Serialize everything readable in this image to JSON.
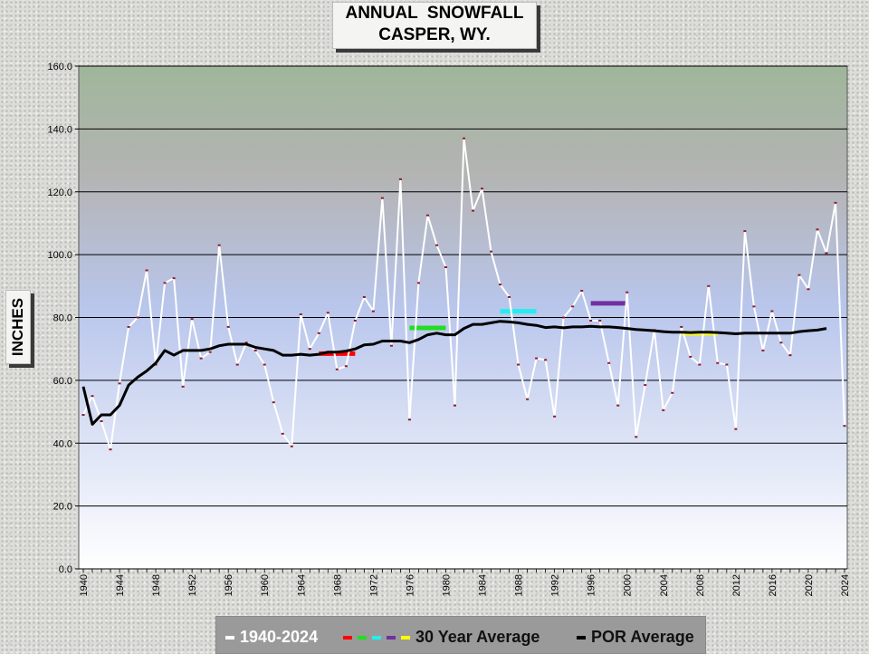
{
  "title_line1": "ANNUAL  SNOWFALL",
  "title_line2": "CASPER, WY.",
  "ylabel": "INCHES",
  "legend": {
    "annual": "1940-2024",
    "thirty": "30 Year Average",
    "por": "POR Average"
  },
  "colors": {
    "annual_line": "#ffffff",
    "annual_marker": "#8b1a2b",
    "por_line": "#000000",
    "thirty_1": "#ff0000",
    "thirty_2": "#22dd22",
    "thirty_3": "#22eeee",
    "thirty_4": "#7030a0",
    "thirty_5": "#ffff00"
  },
  "chart_data": {
    "type": "line",
    "title": "ANNUAL  SNOWFALL CASPER, WY.",
    "ylabel": "INCHES",
    "xlabel": "",
    "ylim": [
      0,
      160
    ],
    "xlim": [
      1940,
      2024
    ],
    "yticks": [
      "0.0",
      "20.0",
      "40.0",
      "60.0",
      "80.0",
      "100.0",
      "120.0",
      "140.0",
      "160.0"
    ],
    "xticks": [
      "1940",
      "1944",
      "1948",
      "1952",
      "1956",
      "1960",
      "1964",
      "1968",
      "1972",
      "1976",
      "1980",
      "1984",
      "1988",
      "1992",
      "1996",
      "2000",
      "2004",
      "2008",
      "2012",
      "2016",
      "2020",
      "2024"
    ],
    "grid": true,
    "legend_position": "bottom",
    "series": [
      {
        "name": "1940-2024",
        "x_start": 1940,
        "values": [
          49.0,
          55.0,
          47.0,
          38.0,
          59.0,
          77.0,
          80.0,
          95.0,
          65.0,
          91.0,
          92.5,
          58.0,
          79.5,
          67.0,
          69.0,
          103.0,
          77.0,
          65.0,
          72.0,
          69.5,
          65.0,
          53.0,
          43.0,
          39.0,
          81.0,
          70.0,
          75.0,
          81.5,
          63.5,
          64.5,
          79.0,
          86.5,
          82.0,
          118.0,
          71.0,
          124.0,
          47.5,
          91.0,
          112.5,
          103.0,
          96.0,
          52.0,
          137.0,
          114.0,
          121.0,
          101.0,
          90.5,
          86.5,
          65.0,
          54.0,
          67.0,
          66.5,
          48.5,
          80.0,
          83.5,
          88.5,
          79.0,
          79.0,
          65.5,
          52.0,
          88.0,
          42.0,
          58.5,
          76.0,
          50.5,
          56.0,
          77.0,
          67.5,
          65.0,
          90.0,
          65.5,
          65.0,
          44.5,
          107.5,
          83.5,
          69.5,
          82.0,
          72.0,
          68.0,
          93.5,
          89.0,
          108.0,
          100.5,
          116.5,
          45.5
        ]
      },
      {
        "name": "POR Average",
        "x_start": 1940,
        "values": [
          58.0,
          46.0,
          49.0,
          49.0,
          52.0,
          58.5,
          61.0,
          63.0,
          65.5,
          69.5,
          68.0,
          69.5,
          69.5,
          69.5,
          70.0,
          71.0,
          71.5,
          71.5,
          71.5,
          70.5,
          70.0,
          69.5,
          68.0,
          68.0,
          68.3,
          68.0,
          68.3,
          69.0,
          69.0,
          69.3,
          70.0,
          71.3,
          71.5,
          72.5,
          72.5,
          72.5,
          72.0,
          73.0,
          74.5,
          75.0,
          74.5,
          74.5,
          76.5,
          77.8,
          77.8,
          78.3,
          78.8,
          78.6,
          78.3,
          77.8,
          77.5,
          76.8,
          77.0,
          76.7,
          77.0,
          77.0,
          77.2,
          77.0,
          77.0,
          76.8,
          76.5,
          76.2,
          76.0,
          75.8,
          75.5,
          75.3,
          75.3,
          75.2,
          75.3,
          75.3,
          75.2,
          75.0,
          74.8,
          75.0,
          75.0,
          75.0,
          75.0,
          75.0,
          75.0,
          75.5,
          75.8,
          76.0,
          76.5
        ]
      },
      {
        "name": "30 Year Average",
        "segments": [
          {
            "x": [
              1966,
              1970
            ],
            "y": 68.5
          },
          {
            "x": [
              1976,
              1980
            ],
            "y": 76.7
          },
          {
            "x": [
              1986,
              1990
            ],
            "y": 82.0
          },
          {
            "x": [
              1996,
              2000
            ],
            "y": 84.5
          },
          {
            "x": [
              2006,
              2010
            ],
            "y": 75.0
          }
        ]
      }
    ]
  }
}
